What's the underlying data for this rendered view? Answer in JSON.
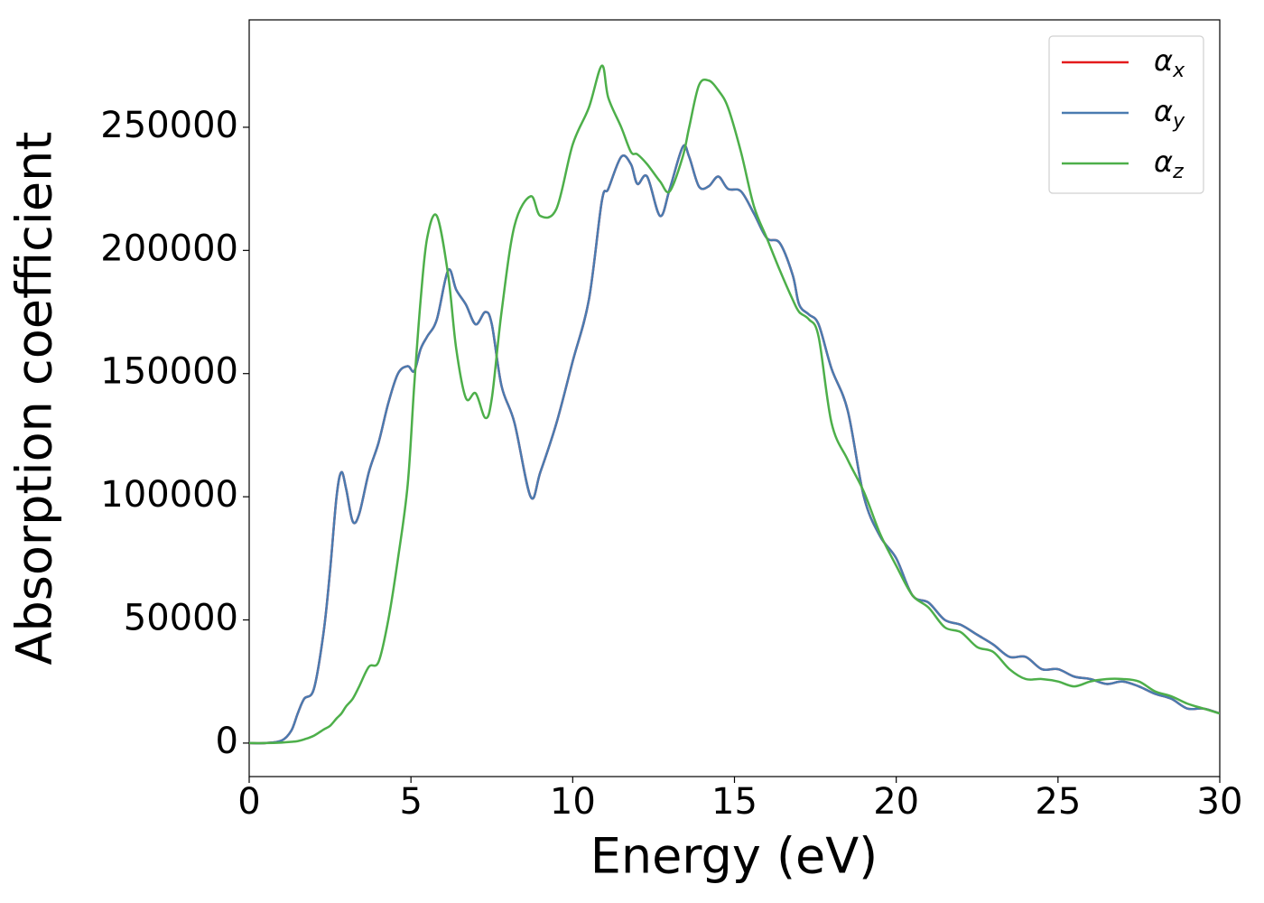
{
  "chart_data": {
    "type": "line",
    "xlabel": "Energy (eV)",
    "ylabel": "Absorption coefficient",
    "x": [
      0,
      0.5,
      1,
      1.3,
      1.5,
      1.7,
      2,
      2.3,
      2.5,
      2.7,
      2.85,
      3,
      3.2,
      3.4,
      3.7,
      4,
      4.3,
      4.6,
      4.9,
      5.1,
      5.3,
      5.5,
      5.8,
      6.15,
      6.4,
      6.7,
      7,
      7.3,
      7.5,
      7.8,
      8.2,
      8.7,
      9,
      9.5,
      10,
      10.5,
      10.9,
      11.1,
      11.5,
      11.8,
      12,
      12.3,
      12.7,
      13,
      13.4,
      13.6,
      13.9,
      14.2,
      14.5,
      14.8,
      15.2,
      15.6,
      16,
      16.4,
      16.8,
      17,
      17.3,
      17.6,
      18,
      18.5,
      19,
      19.5,
      20,
      20.5,
      21,
      21.5,
      22,
      22.5,
      23,
      23.5,
      24,
      24.5,
      25,
      25.5,
      26,
      26.5,
      27,
      27.5,
      28,
      28.5,
      29,
      29.5,
      30
    ],
    "series": [
      {
        "name": "αx",
        "color": "#e41a1c",
        "values": [
          0,
          0,
          1000,
          5000,
          12000,
          18000,
          22000,
          45000,
          70000,
          100000,
          110000,
          103000,
          90000,
          93000,
          110000,
          122000,
          138000,
          150000,
          153000,
          151000,
          160000,
          165000,
          172000,
          192000,
          184000,
          178000,
          170000,
          175000,
          170000,
          145000,
          130000,
          100000,
          110000,
          130000,
          155000,
          180000,
          220000,
          225000,
          238000,
          235000,
          227000,
          230000,
          214000,
          225000,
          242000,
          238000,
          226000,
          226000,
          230000,
          225000,
          224000,
          215000,
          205000,
          203000,
          190000,
          178000,
          174000,
          170000,
          152000,
          135000,
          100000,
          84000,
          75000,
          60000,
          57000,
          50000,
          48000,
          44000,
          40000,
          35000,
          35000,
          30000,
          30000,
          27000,
          26000,
          24000,
          25000,
          23000,
          20000,
          18000,
          14000,
          14000,
          12000
        ]
      },
      {
        "name": "αy",
        "color": "#4a7bb0",
        "values": [
          0,
          0,
          1000,
          5000,
          12000,
          18000,
          22000,
          45000,
          70000,
          100000,
          110000,
          103000,
          90000,
          93000,
          110000,
          122000,
          138000,
          150000,
          153000,
          151000,
          160000,
          165000,
          172000,
          192000,
          184000,
          178000,
          170000,
          175000,
          170000,
          145000,
          130000,
          100000,
          110000,
          130000,
          155000,
          180000,
          220000,
          225000,
          238000,
          235000,
          227000,
          230000,
          214000,
          225000,
          242000,
          238000,
          226000,
          226000,
          230000,
          225000,
          224000,
          215000,
          205000,
          203000,
          190000,
          178000,
          174000,
          170000,
          152000,
          135000,
          100000,
          84000,
          75000,
          60000,
          57000,
          50000,
          48000,
          44000,
          40000,
          35000,
          35000,
          30000,
          30000,
          27000,
          26000,
          24000,
          25000,
          23000,
          20000,
          18000,
          14000,
          14000,
          12000
        ]
      },
      {
        "name": "αz",
        "color": "#4daf4a",
        "values": [
          0,
          0,
          200,
          500,
          800,
          1500,
          3000,
          5500,
          7000,
          10000,
          12000,
          15000,
          18000,
          23000,
          31000,
          33000,
          50000,
          75000,
          105000,
          145000,
          180000,
          205000,
          214000,
          190000,
          160000,
          140000,
          142000,
          132000,
          140000,
          175000,
          210000,
          222000,
          214000,
          217000,
          243000,
          258000,
          275000,
          262000,
          250000,
          240000,
          239000,
          235000,
          228000,
          224000,
          238000,
          250000,
          267000,
          269000,
          265000,
          258000,
          240000,
          218000,
          205000,
          192000,
          180000,
          175000,
          172000,
          165000,
          130000,
          115000,
          102000,
          85000,
          72000,
          60000,
          55000,
          47000,
          45000,
          39000,
          37000,
          30000,
          26000,
          26000,
          25000,
          23000,
          25000,
          26000,
          26000,
          25000,
          21000,
          19000,
          16000,
          14000,
          12000
        ]
      }
    ],
    "xlim": [
      0,
      30
    ],
    "xticks": [
      0,
      5,
      10,
      15,
      20,
      25,
      30
    ],
    "ylim": [
      -13600,
      293600
    ],
    "yticks": [
      0,
      50000,
      100000,
      150000,
      200000,
      250000
    ],
    "grid": false,
    "legend": "upper right"
  }
}
